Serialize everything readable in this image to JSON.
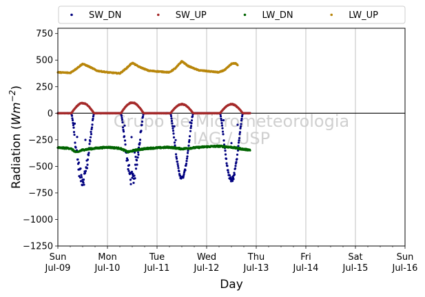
{
  "chart_data": {
    "type": "scatter",
    "title": "",
    "xlabel": "Day",
    "ylabel": {
      "prefix": "Radiation (",
      "unit": "Wm",
      "sup": "−2",
      "suffix": ")"
    },
    "ylim": [
      -1250,
      800
    ],
    "yticks": [
      -1250,
      -1000,
      -750,
      -500,
      -250,
      0,
      250,
      500,
      750
    ],
    "ytick_labels": [
      "−1250",
      "−1000",
      "−750",
      "−500",
      "−250",
      "0",
      "250",
      "500",
      "750"
    ],
    "xlim": [
      "2023-07-09",
      "2023-07-16"
    ],
    "xticks": [
      {
        "day": "Sun",
        "date": "Jul-09"
      },
      {
        "day": "Mon",
        "date": "Jul-10"
      },
      {
        "day": "Tue",
        "date": "Jul-11"
      },
      {
        "day": "Wed",
        "date": "Jul-12"
      },
      {
        "day": "Thu",
        "date": "Jul-13"
      },
      {
        "day": "Fri",
        "date": "Jul-14"
      },
      {
        "day": "Sat",
        "date": "Jul-15"
      },
      {
        "day": "Sun",
        "date": "Jul-16"
      }
    ],
    "grid": "vertical",
    "legend": {
      "placement": "top",
      "columns": 4
    },
    "watermark": [
      "Grupo de Micrometeorologia",
      "IAG / USP"
    ],
    "reference_line": 0,
    "series": [
      {
        "name": "SW_DN",
        "color": "#00007f",
        "days": [
          {
            "date": "2023-07-09",
            "peak": -620,
            "min_spike": -740,
            "noise": 70
          },
          {
            "date": "2023-07-10",
            "peak": -620,
            "min_spike": -700,
            "noise": 70
          },
          {
            "date": "2023-07-11",
            "peak": -610,
            "min_spike": -620,
            "noise": 15
          },
          {
            "date": "2023-07-12",
            "peak": -630,
            "min_spike": -650,
            "noise": 25
          }
        ],
        "night_value": 0
      },
      {
        "name": "SW_UP",
        "color": "#a52a2a",
        "days": [
          {
            "date": "2023-07-09",
            "peak": 95
          },
          {
            "date": "2023-07-10",
            "peak": 100
          },
          {
            "date": "2023-07-11",
            "peak": 85
          },
          {
            "date": "2023-07-12",
            "peak": 85
          }
        ],
        "night_value": 0
      },
      {
        "name": "LW_DN",
        "color": "#006400",
        "points": [
          [
            "2023-07-09T00:00",
            -325
          ],
          [
            "2023-07-09T06:00",
            -330
          ],
          [
            "2023-07-09T09:00",
            -370
          ],
          [
            "2023-07-09T12:00",
            -345
          ],
          [
            "2023-07-09T18:00",
            -330
          ],
          [
            "2023-07-10T00:00",
            -320
          ],
          [
            "2023-07-10T06:00",
            -330
          ],
          [
            "2023-07-10T10:00",
            -365
          ],
          [
            "2023-07-10T14:00",
            -345
          ],
          [
            "2023-07-10T20:00",
            -330
          ],
          [
            "2023-07-11T06:00",
            -320
          ],
          [
            "2023-07-11T12:00",
            -335
          ],
          [
            "2023-07-11T18:00",
            -325
          ],
          [
            "2023-07-12T00:00",
            -315
          ],
          [
            "2023-07-12T06:00",
            -310
          ],
          [
            "2023-07-12T12:00",
            -320
          ],
          [
            "2023-07-12T18:00",
            -340
          ],
          [
            "2023-07-12T21:00",
            -345
          ]
        ]
      },
      {
        "name": "LW_UP",
        "color": "#b8860b",
        "points": [
          [
            "2023-07-09T00:00",
            385
          ],
          [
            "2023-07-09T06:00",
            380
          ],
          [
            "2023-07-09T09:00",
            420
          ],
          [
            "2023-07-09T12:00",
            465
          ],
          [
            "2023-07-09T15:00",
            440
          ],
          [
            "2023-07-09T19:00",
            400
          ],
          [
            "2023-07-10T00:00",
            385
          ],
          [
            "2023-07-10T06:00",
            375
          ],
          [
            "2023-07-10T09:00",
            420
          ],
          [
            "2023-07-10T12:00",
            475
          ],
          [
            "2023-07-10T15:00",
            440
          ],
          [
            "2023-07-10T20:00",
            400
          ],
          [
            "2023-07-11T06:00",
            385
          ],
          [
            "2023-07-11T09:00",
            425
          ],
          [
            "2023-07-11T12:00",
            490
          ],
          [
            "2023-07-11T15:00",
            445
          ],
          [
            "2023-07-11T20:00",
            405
          ],
          [
            "2023-07-12T06:00",
            385
          ],
          [
            "2023-07-12T09:00",
            410
          ],
          [
            "2023-07-12T12:00",
            465
          ],
          [
            "2023-07-12T14:00",
            470
          ],
          [
            "2023-07-12T15:00",
            455
          ]
        ]
      }
    ]
  }
}
